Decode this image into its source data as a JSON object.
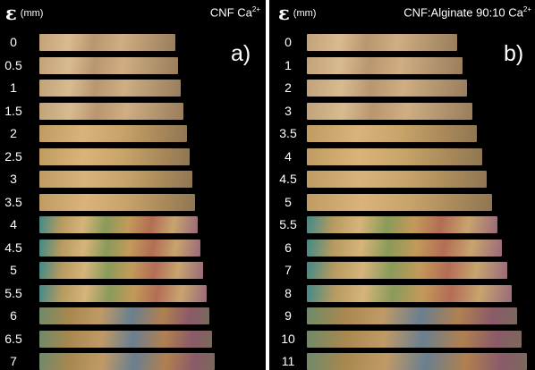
{
  "panel_a": {
    "epsilon_symbol": "ε",
    "unit": "(mm)",
    "title": "CNF Ca",
    "title_sup": "2+",
    "label": "a)",
    "strain_labels": [
      "0",
      "0.5",
      "1",
      "1.5",
      "2",
      "2.5",
      "3",
      "3.5",
      "4",
      "4.5",
      "5",
      "5.5",
      "6",
      "6.5",
      "7"
    ]
  },
  "panel_b": {
    "epsilon_symbol": "ε",
    "unit": "(mm)",
    "title": "CNF:Alginate 90:10 Ca",
    "title_sup": "2+",
    "label": "b)",
    "strain_labels": [
      "0",
      "1",
      "2",
      "3",
      "3.5",
      "4",
      "4.5",
      "5",
      "5.5",
      "6",
      "7",
      "8",
      "9",
      "10",
      "11"
    ]
  },
  "colors": {
    "background": "#000000",
    "text": "#ffffff",
    "separator": "#ffffff"
  }
}
